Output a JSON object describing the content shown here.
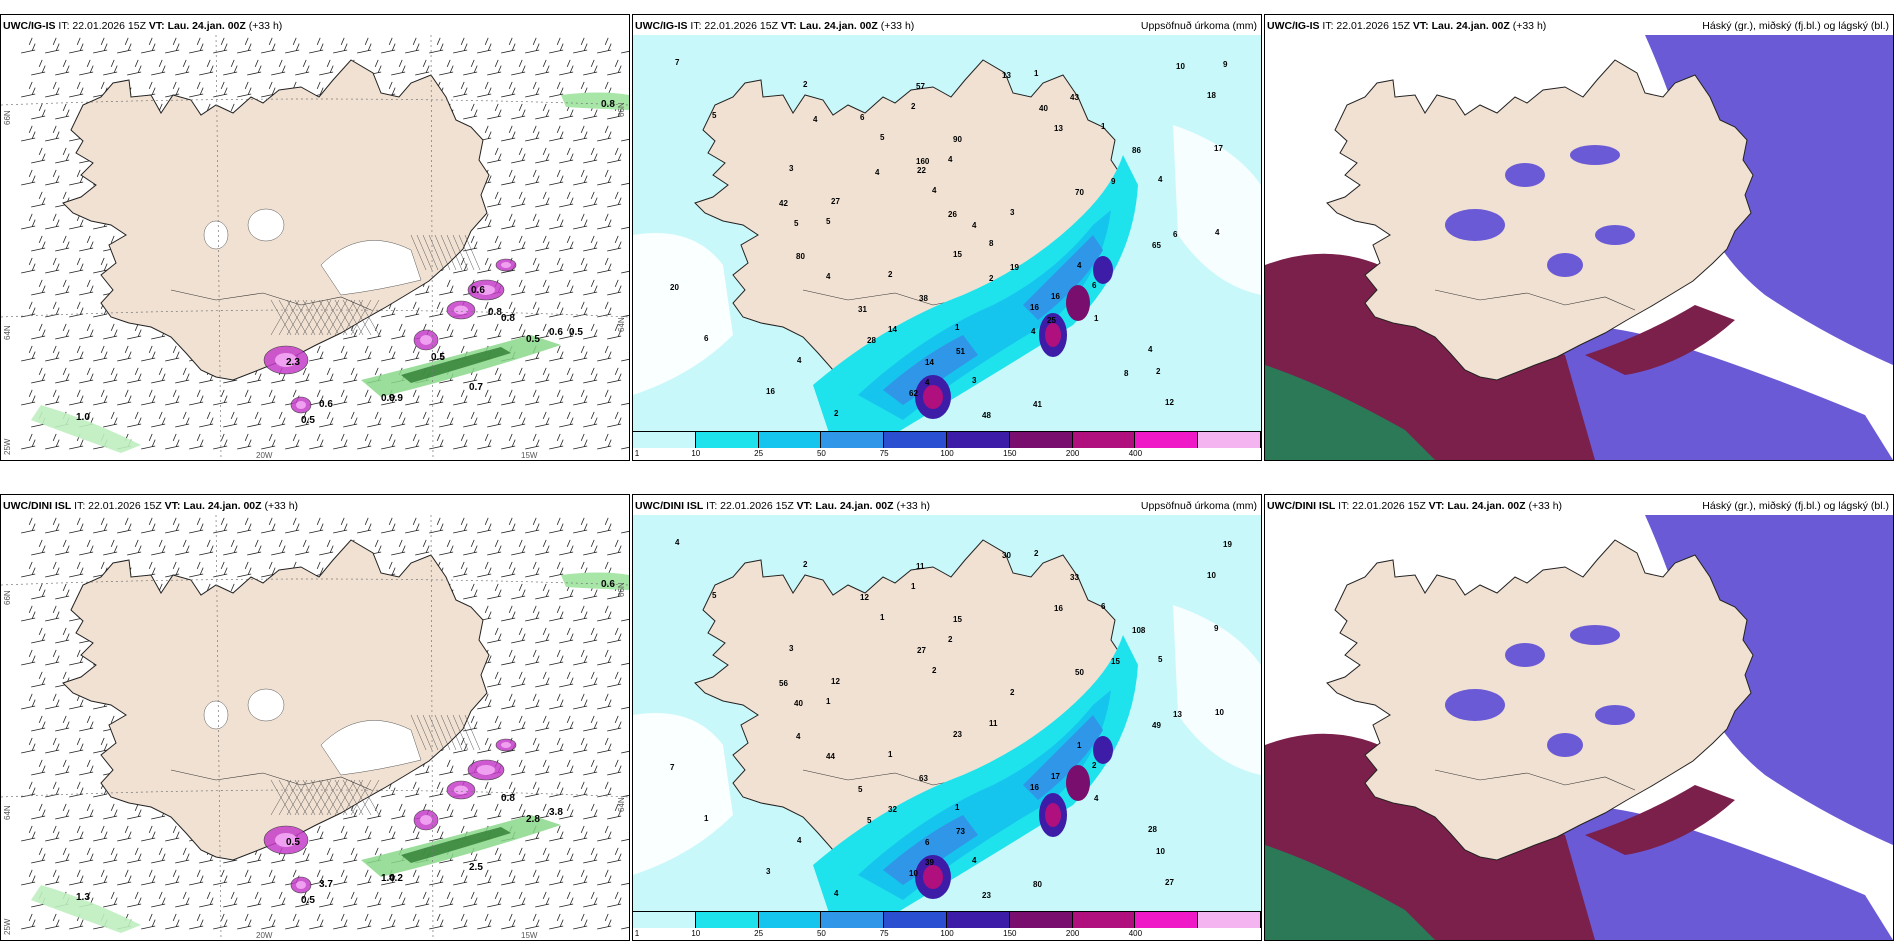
{
  "panels": [
    {
      "model": "UWC/IG-IS",
      "it": "IT: 22.01.2026 15Z",
      "vt_label": "VT:",
      "vt": "Lau. 24.jan. 00Z",
      "lead": "(+33 h)",
      "right": "",
      "lat_labels": [
        "66N",
        "64N"
      ],
      "lat_right": [
        "66N",
        "64N"
      ],
      "lat_extra": "25W",
      "lon_labels": [
        "20W",
        "15W"
      ],
      "values": [
        "0.8",
        "2.3",
        "0.6",
        "0.5",
        "1.0",
        "0.9",
        "0.9",
        "0.7",
        "0.8",
        "0.5",
        "0.6",
        "0.5",
        "0.8",
        "0.5",
        "0.6"
      ]
    },
    {
      "model": "UWC/IG-IS",
      "it": "IT: 22.01.2026 15Z",
      "vt_label": "VT:",
      "vt": "Lau. 24.jan. 00Z",
      "lead": "(+33 h)",
      "right": "Uppsöfnuð úrkoma (mm)",
      "values": [
        "7",
        "5",
        "3",
        "5",
        "2",
        "1",
        "3",
        "1",
        "1",
        "4",
        "4",
        "6",
        "6",
        "16",
        "2",
        "5",
        "4",
        "8",
        "16",
        "4",
        "12",
        "18",
        "17",
        "27",
        "15",
        "16",
        "4",
        "2",
        "2",
        "4",
        "3",
        "4",
        "1",
        "2",
        "9",
        "6",
        "22",
        "5",
        "4",
        "14",
        "4",
        "13",
        "13",
        "9",
        "6",
        "20",
        "28",
        "62",
        "57",
        "90",
        "70",
        "65",
        "38",
        "51",
        "41",
        "43",
        "86",
        "42",
        "80",
        "31",
        "14",
        "48",
        "40",
        "160",
        "26",
        "19",
        "25",
        "8",
        "10",
        "4",
        "4",
        "4",
        "2",
        "4"
      ],
      "colorbar_labels": [
        "1",
        "10",
        "25",
        "50",
        "75",
        "100",
        "150",
        "200",
        "400"
      ]
    },
    {
      "model": "UWC/IG-IS",
      "it": "IT: 22.01.2026 15Z",
      "vt_label": "VT:",
      "vt": "Lau. 24.jan. 00Z",
      "lead": "(+33 h)",
      "right": "Háský (gr.), miðský (fj.bl.) og lágský (bl.)"
    },
    {
      "model": "UWC/DINI ISL",
      "it": "IT: 22.01.2026 15Z",
      "vt_label": "VT:",
      "vt": "Lau. 24.jan. 00Z",
      "lead": "(+33 h)",
      "right": "",
      "lat_labels": [
        "66N",
        "64N"
      ],
      "lat_right": [
        "66N",
        "64N"
      ],
      "lat_extra": "25W",
      "lon_labels": [
        "20W",
        "15W"
      ],
      "values": [
        "0.6",
        "0.5",
        "3.7",
        "0.5",
        "1.3",
        "1.0",
        "4.2",
        "2.5",
        "0.8",
        "2.8",
        "3.8"
      ]
    },
    {
      "model": "UWC/DINI ISL",
      "it": "IT: 22.01.2026 15Z",
      "vt_label": "VT:",
      "vt": "Lau. 24.jan. 00Z",
      "lead": "(+33 h)",
      "right": "Uppsöfnuð úrkoma (mm)",
      "values": [
        "4",
        "5",
        "3",
        "1",
        "1",
        "1",
        "4",
        "2",
        "6",
        "5",
        "10",
        "2",
        "1",
        "3",
        "2",
        "1",
        "2",
        "11",
        "17",
        "28",
        "27",
        "10",
        "9",
        "12",
        "23",
        "16",
        "4",
        "4",
        "1",
        "2",
        "2",
        "1",
        "4",
        "10",
        "19",
        "12",
        "27",
        "40",
        "44",
        "32",
        "39",
        "30",
        "16",
        "15",
        "13",
        "7",
        "5",
        "10",
        "11",
        "15",
        "50",
        "49",
        "63",
        "73",
        "80",
        "33",
        "108",
        "56",
        "4",
        "5",
        "6",
        "23"
      ],
      "colorbar_labels": [
        "1",
        "10",
        "25",
        "50",
        "75",
        "100",
        "150",
        "200",
        "400"
      ]
    },
    {
      "model": "UWC/DINI ISL",
      "it": "IT: 22.01.2026 15Z",
      "vt_label": "VT:",
      "vt": "Lau. 24.jan. 00Z",
      "lead": "(+33 h)",
      "right": "Háský (gr.), miðský (fj.bl.) og lágský (bl.)"
    }
  ],
  "colors": {
    "land": "#f1e1d2",
    "sea": "#ffffff",
    "precip": [
      "#c8f8fa",
      "#1ee3ec",
      "#16c5ee",
      "#2f96e8",
      "#2a4fd1",
      "#3d1ca8",
      "#7a0e6e",
      "#b0107d",
      "#f019c8",
      "#f3b4f0"
    ],
    "cloud_low": "#6a5ad6",
    "cloud_mid": "#7b1f4b",
    "cloud_high": "#1f8a5a"
  }
}
